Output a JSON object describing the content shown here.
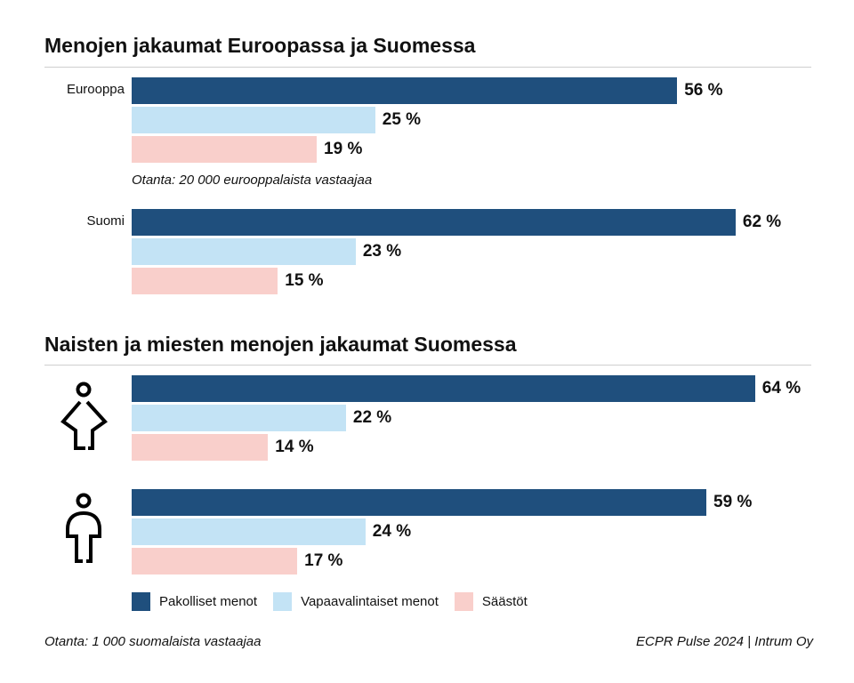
{
  "colors": {
    "Pakolliset menot": "#1f4f7d",
    "Vapaavalintaiset menot": "#c3e3f5",
    "Säästöt": "#f9cfcb"
  },
  "chart_data": [
    {
      "type": "bar",
      "orientation": "horizontal",
      "title": "Menojen jakaumat Euroopassa ja Suomessa",
      "unit": "%",
      "xlim": [
        0,
        70
      ],
      "categories": [
        "Eurooppa",
        "Suomi"
      ],
      "series": [
        {
          "name": "Pakolliset menot",
          "values": [
            56,
            62
          ]
        },
        {
          "name": "Vapaavalintaiset menot",
          "values": [
            25,
            23
          ]
        },
        {
          "name": "Säästöt",
          "values": [
            19,
            15
          ]
        }
      ],
      "labels": [
        [
          "56 %",
          "25 %",
          "19 %"
        ],
        [
          "62 %",
          "23 %",
          "15 %"
        ]
      ],
      "annotations": [
        "Otanta: 20 000 eurooppalaista vastaajaa"
      ]
    },
    {
      "type": "bar",
      "orientation": "horizontal",
      "title": "Naisten ja miesten menojen jakaumat Suomessa",
      "unit": "%",
      "xlim": [
        0,
        70
      ],
      "categories": [
        "woman-icon",
        "man-icon"
      ],
      "series": [
        {
          "name": "Pakolliset menot",
          "values": [
            64,
            59
          ]
        },
        {
          "name": "Vapaavalintaiset menot",
          "values": [
            22,
            24
          ]
        },
        {
          "name": "Säästöt",
          "values": [
            14,
            17
          ]
        }
      ],
      "labels": [
        [
          "64 %",
          "22 %",
          "14 %"
        ],
        [
          "59 %",
          "24 %",
          "17 %"
        ]
      ]
    }
  ],
  "legend": [
    "Pakolliset menot",
    "Vapaavalintaiset menot",
    "Säästöt"
  ],
  "footer": {
    "sample": "Otanta: 1 000 suomalaista vastaajaa",
    "source": "ECPR Pulse 2024 | Intrum Oy"
  }
}
